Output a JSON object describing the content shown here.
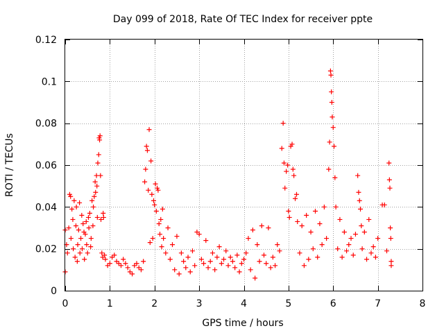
{
  "chart_data": {
    "type": "scatter",
    "title": "Day 099 of 2018, Rate Of TEC Index for receiver ppte",
    "xlabel": "GPS time / hours",
    "ylabel": "ROTI / TECUs",
    "xlim": [
      0,
      8
    ],
    "ylim": [
      0,
      0.12
    ],
    "xticks": [
      0,
      1,
      2,
      3,
      4,
      5,
      6,
      7,
      8
    ],
    "yticks": [
      0,
      0.02,
      0.04,
      0.06,
      0.08,
      0.1,
      0.12
    ],
    "ytick_labels": [
      "0",
      "0.02",
      "0.04",
      "0.06",
      "0.08",
      "0.1",
      "0.12"
    ],
    "grid": true,
    "marker": "+",
    "color": "#ff0000",
    "series": [
      {
        "name": "ROTI",
        "points": [
          [
            0.0,
            0.029
          ],
          [
            0.0,
            0.009
          ],
          [
            0.03,
            0.022
          ],
          [
            0.05,
            0.018
          ],
          [
            0.08,
            0.03
          ],
          [
            0.1,
            0.046
          ],
          [
            0.12,
            0.045
          ],
          [
            0.13,
            0.025
          ],
          [
            0.15,
            0.039
          ],
          [
            0.17,
            0.034
          ],
          [
            0.18,
            0.02
          ],
          [
            0.2,
            0.043
          ],
          [
            0.22,
            0.016
          ],
          [
            0.24,
            0.031
          ],
          [
            0.25,
            0.04
          ],
          [
            0.27,
            0.014
          ],
          [
            0.28,
            0.022
          ],
          [
            0.3,
            0.029
          ],
          [
            0.32,
            0.042
          ],
          [
            0.33,
            0.018
          ],
          [
            0.35,
            0.025
          ],
          [
            0.37,
            0.036
          ],
          [
            0.38,
            0.02
          ],
          [
            0.4,
            0.032
          ],
          [
            0.42,
            0.028
          ],
          [
            0.43,
            0.015
          ],
          [
            0.45,
            0.027
          ],
          [
            0.47,
            0.033
          ],
          [
            0.48,
            0.022
          ],
          [
            0.5,
            0.018
          ],
          [
            0.52,
            0.035
          ],
          [
            0.53,
            0.03
          ],
          [
            0.55,
            0.037
          ],
          [
            0.57,
            0.021
          ],
          [
            0.58,
            0.025
          ],
          [
            0.6,
            0.043
          ],
          [
            0.62,
            0.031
          ],
          [
            0.63,
            0.04
          ],
          [
            0.65,
            0.045
          ],
          [
            0.67,
            0.052
          ],
          [
            0.68,
            0.047
          ],
          [
            0.7,
            0.055
          ],
          [
            0.71,
            0.05
          ],
          [
            0.72,
            0.035
          ],
          [
            0.73,
            0.061
          ],
          [
            0.75,
            0.065
          ],
          [
            0.76,
            0.073
          ],
          [
            0.77,
            0.072
          ],
          [
            0.78,
            0.074
          ],
          [
            0.79,
            0.055
          ],
          [
            0.8,
            0.034
          ],
          [
            0.82,
            0.018
          ],
          [
            0.84,
            0.016
          ],
          [
            0.85,
            0.037
          ],
          [
            0.86,
            0.035
          ],
          [
            0.88,
            0.017
          ],
          [
            0.9,
            0.015
          ],
          [
            0.95,
            0.012
          ],
          [
            1.0,
            0.013
          ],
          [
            1.05,
            0.016
          ],
          [
            1.1,
            0.017
          ],
          [
            1.15,
            0.014
          ],
          [
            1.2,
            0.013
          ],
          [
            1.25,
            0.012
          ],
          [
            1.3,
            0.015
          ],
          [
            1.35,
            0.013
          ],
          [
            1.4,
            0.011
          ],
          [
            1.45,
            0.009
          ],
          [
            1.5,
            0.008
          ],
          [
            1.55,
            0.012
          ],
          [
            1.6,
            0.013
          ],
          [
            1.65,
            0.011
          ],
          [
            1.7,
            0.01
          ],
          [
            1.75,
            0.014
          ],
          [
            1.78,
            0.052
          ],
          [
            1.8,
            0.058
          ],
          [
            1.82,
            0.069
          ],
          [
            1.84,
            0.067
          ],
          [
            1.86,
            0.048
          ],
          [
            1.88,
            0.077
          ],
          [
            1.9,
            0.023
          ],
          [
            1.92,
            0.062
          ],
          [
            1.94,
            0.046
          ],
          [
            1.96,
            0.025
          ],
          [
            1.98,
            0.043
          ],
          [
            2.0,
            0.041
          ],
          [
            2.02,
            0.051
          ],
          [
            2.04,
            0.038
          ],
          [
            2.06,
            0.049
          ],
          [
            2.08,
            0.048
          ],
          [
            2.1,
            0.032
          ],
          [
            2.12,
            0.027
          ],
          [
            2.14,
            0.034
          ],
          [
            2.16,
            0.021
          ],
          [
            2.18,
            0.039
          ],
          [
            2.2,
            0.025
          ],
          [
            2.25,
            0.018
          ],
          [
            2.3,
            0.03
          ],
          [
            2.35,
            0.015
          ],
          [
            2.4,
            0.022
          ],
          [
            2.45,
            0.01
          ],
          [
            2.5,
            0.026
          ],
          [
            2.55,
            0.008
          ],
          [
            2.6,
            0.018
          ],
          [
            2.65,
            0.014
          ],
          [
            2.7,
            0.011
          ],
          [
            2.75,
            0.016
          ],
          [
            2.8,
            0.009
          ],
          [
            2.85,
            0.019
          ],
          [
            2.9,
            0.012
          ],
          [
            2.95,
            0.028
          ],
          [
            3.0,
            0.027
          ],
          [
            3.05,
            0.015
          ],
          [
            3.1,
            0.013
          ],
          [
            3.15,
            0.024
          ],
          [
            3.2,
            0.011
          ],
          [
            3.25,
            0.014
          ],
          [
            3.3,
            0.018
          ],
          [
            3.35,
            0.01
          ],
          [
            3.4,
            0.016
          ],
          [
            3.45,
            0.021
          ],
          [
            3.5,
            0.013
          ],
          [
            3.55,
            0.015
          ],
          [
            3.6,
            0.019
          ],
          [
            3.65,
            0.012
          ],
          [
            3.7,
            0.016
          ],
          [
            3.75,
            0.014
          ],
          [
            3.8,
            0.011
          ],
          [
            3.85,
            0.017
          ],
          [
            3.9,
            0.009
          ],
          [
            3.95,
            0.013
          ],
          [
            4.0,
            0.015
          ],
          [
            4.05,
            0.018
          ],
          [
            4.1,
            0.025
          ],
          [
            4.15,
            0.01
          ],
          [
            4.2,
            0.029
          ],
          [
            4.25,
            0.006
          ],
          [
            4.3,
            0.022
          ],
          [
            4.35,
            0.014
          ],
          [
            4.4,
            0.031
          ],
          [
            4.45,
            0.017
          ],
          [
            4.5,
            0.013
          ],
          [
            4.55,
            0.03
          ],
          [
            4.6,
            0.011
          ],
          [
            4.65,
            0.016
          ],
          [
            4.7,
            0.012
          ],
          [
            4.75,
            0.022
          ],
          [
            4.8,
            0.019
          ],
          [
            4.85,
            0.068
          ],
          [
            4.88,
            0.08
          ],
          [
            4.9,
            0.061
          ],
          [
            4.92,
            0.049
          ],
          [
            4.95,
            0.057
          ],
          [
            4.98,
            0.06
          ],
          [
            5.0,
            0.038
          ],
          [
            5.02,
            0.035
          ],
          [
            5.05,
            0.069
          ],
          [
            5.08,
            0.07
          ],
          [
            5.1,
            0.058
          ],
          [
            5.12,
            0.055
          ],
          [
            5.15,
            0.044
          ],
          [
            5.18,
            0.046
          ],
          [
            5.2,
            0.033
          ],
          [
            5.25,
            0.018
          ],
          [
            5.3,
            0.031
          ],
          [
            5.35,
            0.012
          ],
          [
            5.4,
            0.036
          ],
          [
            5.45,
            0.015
          ],
          [
            5.5,
            0.028
          ],
          [
            5.55,
            0.02
          ],
          [
            5.6,
            0.038
          ],
          [
            5.65,
            0.016
          ],
          [
            5.7,
            0.032
          ],
          [
            5.75,
            0.022
          ],
          [
            5.8,
            0.04
          ],
          [
            5.85,
            0.025
          ],
          [
            5.9,
            0.058
          ],
          [
            5.92,
            0.071
          ],
          [
            5.94,
            0.105
          ],
          [
            5.95,
            0.103
          ],
          [
            5.96,
            0.095
          ],
          [
            5.97,
            0.09
          ],
          [
            5.98,
            0.083
          ],
          [
            6.0,
            0.078
          ],
          [
            6.02,
            0.069
          ],
          [
            6.04,
            0.054
          ],
          [
            6.06,
            0.04
          ],
          [
            6.1,
            0.02
          ],
          [
            6.15,
            0.034
          ],
          [
            6.2,
            0.016
          ],
          [
            6.25,
            0.028
          ],
          [
            6.3,
            0.019
          ],
          [
            6.35,
            0.022
          ],
          [
            6.4,
            0.025
          ],
          [
            6.45,
            0.017
          ],
          [
            6.5,
            0.027
          ],
          [
            6.55,
            0.055
          ],
          [
            6.57,
            0.047
          ],
          [
            6.59,
            0.043
          ],
          [
            6.61,
            0.039
          ],
          [
            6.63,
            0.031
          ],
          [
            6.65,
            0.02
          ],
          [
            6.7,
            0.028
          ],
          [
            6.75,
            0.015
          ],
          [
            6.8,
            0.034
          ],
          [
            6.85,
            0.018
          ],
          [
            6.9,
            0.021
          ],
          [
            6.95,
            0.016
          ],
          [
            7.0,
            0.025
          ],
          [
            7.1,
            0.041
          ],
          [
            7.15,
            0.041
          ],
          [
            7.2,
            0.019
          ],
          [
            7.25,
            0.061
          ],
          [
            7.26,
            0.053
          ],
          [
            7.27,
            0.049
          ],
          [
            7.28,
            0.03
          ],
          [
            7.29,
            0.025
          ],
          [
            7.3,
            0.014
          ],
          [
            7.3,
            0.012
          ]
        ]
      }
    ]
  }
}
